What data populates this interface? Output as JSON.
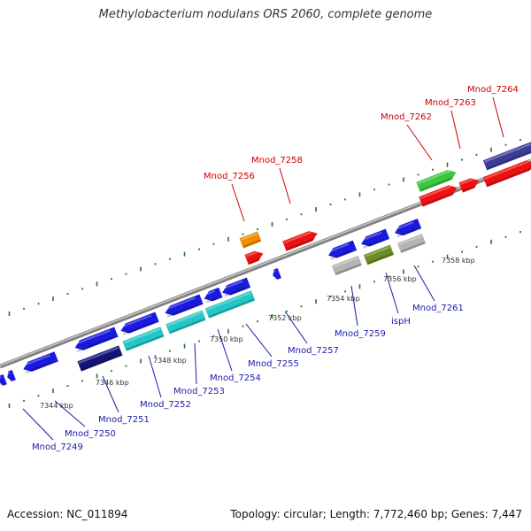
{
  "title": "Methylobacterium nodulans ORS 2060, complete genome",
  "footer": {
    "accession": "Accession: NC_011894",
    "stats": "Topology: circular; Length: 7,772,460 bp; Genes: 7,447"
  },
  "colors": {
    "forward_label": "#cc0000",
    "reverse_label": "#1a1aaa",
    "backbone": "#808080",
    "tick": "#1f7a1f"
  },
  "kbp_labels": [
    "7344 kbp",
    "7346 kbp",
    "7348 kbp",
    "7350 kbp",
    "7352 kbp",
    "7354 kbp",
    "7356 kbp",
    "7358 kbp"
  ],
  "forward_labels": [
    "Mnod_7256",
    "Mnod_7258",
    "Mnod_7262",
    "Mnod_7263",
    "Mnod_7264"
  ],
  "reverse_labels": [
    "Mnod_7249",
    "Mnod_7250",
    "Mnod_7251",
    "Mnod_7252",
    "Mnod_7253",
    "Mnod_7254",
    "Mnod_7255",
    "Mnod_7257",
    "Mnod_7259",
    "ispH",
    "Mnod_7261"
  ]
}
